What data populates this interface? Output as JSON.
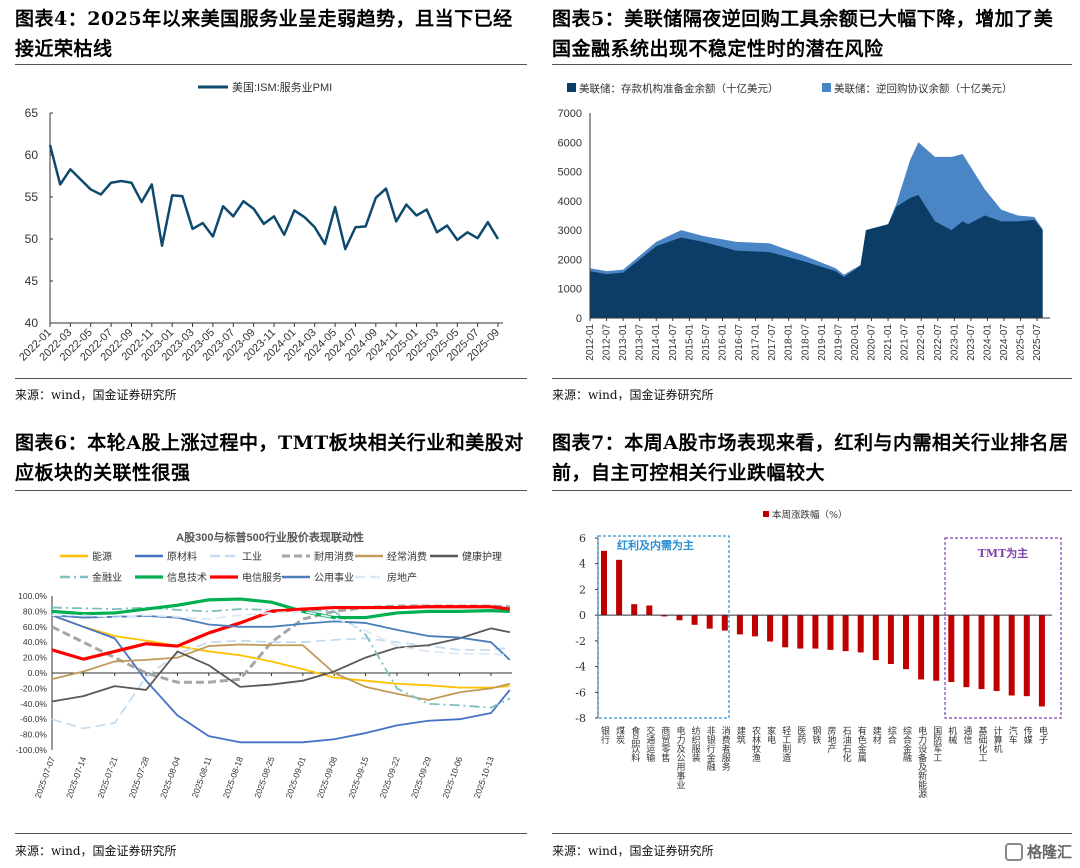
{
  "titles": {
    "fig4": "图表4：2025年以来美国服务业呈走弱趋势，且当下已经接近荣枯线",
    "fig5": "图表5：美联储隔夜逆回购工具余额已大幅下降，增加了美国金融系统出现不稳定性时的潜在风险",
    "fig6": "图表6：本轮A股上涨过程中，TMT板块相关行业和美股对应板块的关联性很强",
    "fig7": "图表7：本周A股市场表现来看，红利与内需相关行业排名居前，自主可控相关行业跌幅较大"
  },
  "source": "来源：wind，国金证券研究所",
  "logo": "格隆汇",
  "chart_data": [
    {
      "type": "line",
      "legend": "美国:ISM:服务业PMI",
      "color": "#0e4a6e",
      "ylim": [
        40,
        65
      ],
      "yticks": [
        40,
        45,
        50,
        55,
        60,
        65
      ],
      "xticks": [
        "2022-01",
        "2022-03",
        "2022-05",
        "2022-07",
        "2022-09",
        "2022-11",
        "2023-01",
        "2023-03",
        "2023-05",
        "2023-07",
        "2023-09",
        "2023-11",
        "2024-01",
        "2024-03",
        "2024-05",
        "2024-07",
        "2024-09",
        "2024-11",
        "2025-01",
        "2025-03",
        "2025-05",
        "2025-07",
        "2025-09"
      ],
      "start": "2022-01",
      "values": [
        61.2,
        56.5,
        58.3,
        57.1,
        55.9,
        55.3,
        56.7,
        56.9,
        56.7,
        54.4,
        56.5,
        49.2,
        55.2,
        55.1,
        51.2,
        51.9,
        50.3,
        53.9,
        52.7,
        54.5,
        53.6,
        51.8,
        52.7,
        50.5,
        53.4,
        52.6,
        51.4,
        49.4,
        53.8,
        48.8,
        51.4,
        51.5,
        54.9,
        56.0,
        52.1,
        54.1,
        52.8,
        53.5,
        50.8,
        51.6,
        49.9,
        50.8,
        50.1,
        52.0,
        50.0
      ]
    },
    {
      "type": "area",
      "stacked": true,
      "ylim": [
        0,
        7000
      ],
      "yticks": [
        0,
        1000,
        2000,
        3000,
        4000,
        5000,
        6000,
        7000
      ],
      "xticks": [
        "2012-01",
        "2012-07",
        "2013-01",
        "2013-07",
        "2014-01",
        "2014-07",
        "2015-01",
        "2015-07",
        "2016-01",
        "2016-07",
        "2017-01",
        "2017-07",
        "2018-01",
        "2018-07",
        "2019-01",
        "2019-07",
        "2020-01",
        "2020-07",
        "2021-01",
        "2021-07",
        "2022-01",
        "2022-07",
        "2023-01",
        "2023-07",
        "2024-01",
        "2024-07",
        "2025-01",
        "2025-07"
      ],
      "series": [
        {
          "name": "美联储：存款机构准备金余额（十亿美元）",
          "color": "#0b3d66",
          "points": [
            [
              "2012-01",
              1600
            ],
            [
              "2012-07",
              1500
            ],
            [
              "2013-01",
              1550
            ],
            [
              "2013-07",
              2000
            ],
            [
              "2014-01",
              2450
            ],
            [
              "2014-10",
              2750
            ],
            [
              "2015-06",
              2600
            ],
            [
              "2016-06",
              2300
            ],
            [
              "2017-06",
              2250
            ],
            [
              "2018-06",
              1950
            ],
            [
              "2019-06",
              1600
            ],
            [
              "2019-09",
              1400
            ],
            [
              "2020-01",
              1650
            ],
            [
              "2020-03",
              1800
            ],
            [
              "2020-05",
              3000
            ],
            [
              "2021-01",
              3200
            ],
            [
              "2021-04",
              3800
            ],
            [
              "2021-09",
              4100
            ],
            [
              "2021-12",
              4200
            ],
            [
              "2022-06",
              3300
            ],
            [
              "2022-12",
              3000
            ],
            [
              "2023-04",
              3300
            ],
            [
              "2023-06",
              3200
            ],
            [
              "2023-12",
              3500
            ],
            [
              "2024-06",
              3300
            ],
            [
              "2024-12",
              3300
            ],
            [
              "2025-06",
              3350
            ],
            [
              "2025-09",
              3000
            ]
          ]
        },
        {
          "name": "美联储：逆回购协议余额（十亿美元）",
          "color": "#4a86c5",
          "points": [
            [
              "2012-01",
              100
            ],
            [
              "2013-01",
              100
            ],
            [
              "2014-01",
              150
            ],
            [
              "2014-10",
              250
            ],
            [
              "2015-06",
              200
            ],
            [
              "2016-06",
              300
            ],
            [
              "2017-06",
              300
            ],
            [
              "2018-06",
              200
            ],
            [
              "2019-06",
              100
            ],
            [
              "2020-01",
              50
            ],
            [
              "2020-03",
              0
            ],
            [
              "2021-01",
              5
            ],
            [
              "2021-04",
              100
            ],
            [
              "2021-09",
              1300
            ],
            [
              "2021-12",
              1800
            ],
            [
              "2022-06",
              2200
            ],
            [
              "2022-12",
              2500
            ],
            [
              "2023-04",
              2300
            ],
            [
              "2023-06",
              2100
            ],
            [
              "2023-12",
              900
            ],
            [
              "2024-06",
              400
            ],
            [
              "2024-12",
              200
            ],
            [
              "2025-06",
              100
            ],
            [
              "2025-09",
              30
            ]
          ]
        }
      ]
    },
    {
      "type": "line",
      "title": "A股300与标普500行业股价表现联动性",
      "ylim": [
        -100,
        100
      ],
      "yticks": [
        "-100.0%",
        "-80.0%",
        "-60.0%",
        "-40.0%",
        "-20.0%",
        "0.0%",
        "20.0%",
        "40.0%",
        "60.0%",
        "80.0%",
        "100.0%"
      ],
      "xticks": [
        "2025-07-07",
        "2025-07-14",
        "2025-07-21",
        "2025-07-28",
        "2025-08-04",
        "2025-08-11",
        "2025-08-18",
        "2025-08-25",
        "2025-09-01",
        "2025-09-08",
        "2025-09-15",
        "2025-09-22",
        "2025-09-29",
        "2025-10-06",
        "2025-10-13"
      ],
      "x_last": "2025-10-17",
      "series": [
        {
          "name": "能源",
          "color": "#ffc000",
          "style": "solid",
          "values": [
            75,
            60,
            48,
            42,
            35,
            28,
            23,
            15,
            5,
            -6,
            -10,
            -14,
            -16,
            -19,
            -19,
            -17
          ]
        },
        {
          "name": "原材料",
          "color": "#4472c4",
          "style": "solid",
          "values": [
            75,
            60,
            45,
            -10,
            -55,
            -82,
            -90,
            -90,
            -90,
            -86,
            -78,
            -68,
            -62,
            -60,
            -52,
            -22
          ]
        },
        {
          "name": "工业",
          "color": "#c5dcf0",
          "style": "dash",
          "values": [
            -60,
            -72,
            -65,
            -5,
            25,
            40,
            42,
            40,
            40,
            43,
            45,
            40,
            35,
            30,
            30,
            33
          ]
        },
        {
          "name": "耐用消费",
          "color": "#a6a6a6",
          "style": "dashthick",
          "values": [
            60,
            40,
            20,
            0,
            -12,
            -12,
            -8,
            40,
            70,
            80,
            85,
            87,
            87,
            87,
            87,
            86
          ]
        },
        {
          "name": "经常消费",
          "color": "#c09a5b",
          "style": "solid",
          "values": [
            -8,
            2,
            15,
            17,
            20,
            35,
            37,
            36,
            36,
            0,
            -18,
            -27,
            -35,
            -25,
            -20,
            -14
          ]
        },
        {
          "name": "健康护理",
          "color": "#595959",
          "style": "solid",
          "values": [
            -37,
            -30,
            -17,
            -22,
            28,
            10,
            -18,
            -15,
            -10,
            2,
            20,
            33,
            36,
            45,
            58,
            53
          ]
        },
        {
          "name": "金融业",
          "color": "#7fbfbf",
          "style": "dashdot",
          "values": [
            85,
            84,
            83,
            85,
            82,
            80,
            83,
            82,
            82,
            80,
            50,
            -20,
            -40,
            -42,
            -45,
            -33
          ]
        },
        {
          "name": "信息技术",
          "color": "#00b050",
          "style": "thick",
          "values": [
            80,
            77,
            78,
            83,
            88,
            95,
            96,
            92,
            80,
            72,
            72,
            78,
            80,
            80,
            81,
            80
          ]
        },
        {
          "name": "电信服务",
          "color": "#ff0000",
          "style": "thick",
          "values": [
            30,
            18,
            28,
            38,
            35,
            52,
            65,
            80,
            83,
            85,
            85,
            85,
            86,
            86,
            86,
            83
          ]
        },
        {
          "name": "公用事业",
          "color": "#4a7ebb",
          "style": "solid",
          "values": [
            75,
            72,
            73,
            74,
            72,
            63,
            60,
            60,
            64,
            67,
            65,
            56,
            48,
            46,
            40,
            17
          ]
        },
        {
          "name": "房地产",
          "color": "#dbe8f5",
          "style": "dash",
          "values": [
            75,
            75,
            72,
            75,
            73,
            70,
            75,
            78,
            80,
            72,
            55,
            35,
            28,
            25,
            25,
            23
          ]
        }
      ]
    },
    {
      "type": "bar",
      "legend": "本周涨跌幅（%）",
      "color": "#c00000",
      "ylim": [
        -8,
        6
      ],
      "yticks": [
        -8,
        -6,
        -4,
        -2,
        0,
        2,
        4,
        6
      ],
      "categories": [
        "银行",
        "煤炭",
        "食品饮料",
        "交通运输",
        "商贸零售",
        "电力及公用事业",
        "纺织服装",
        "非银行金融",
        "消费者服务",
        "建筑",
        "农林牧渔",
        "家电",
        "轻工制造",
        "医药",
        "钢铁",
        "房地产",
        "石油石化",
        "有色金属",
        "建材",
        "综合",
        "综合金融",
        "电力设备及新能源",
        "国防军工",
        "机械",
        "通信",
        "基础化工",
        "计算机",
        "汽车",
        "传媒",
        "电子"
      ],
      "values": [
        5.0,
        4.3,
        0.85,
        0.75,
        -0.1,
        -0.4,
        -0.75,
        -1.05,
        -1.2,
        -1.5,
        -1.65,
        -2.05,
        -2.5,
        -2.6,
        -2.6,
        -2.7,
        -2.8,
        -2.9,
        -3.5,
        -3.8,
        -4.2,
        -5.0,
        -5.1,
        -5.2,
        -5.6,
        -5.75,
        -5.9,
        -6.25,
        -6.3,
        -7.1
      ],
      "annotations": [
        {
          "text": "红利及内需为主",
          "color": "#2a8fd0"
        },
        {
          "text": "TMT为主",
          "color": "#8040b0"
        }
      ]
    }
  ]
}
